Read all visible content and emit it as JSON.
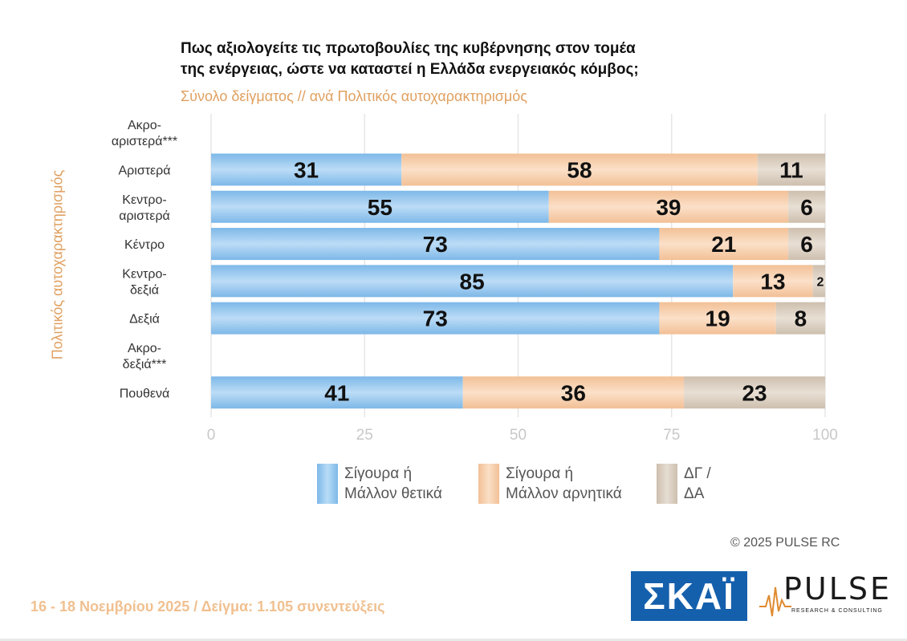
{
  "chart_data": {
    "type": "bar",
    "orientation": "horizontal",
    "stacked": true,
    "title_lines": [
      "Πως αξιολογείτε τις πρωτοβουλίες της κυβέρνησης στον τομέα",
      "της ενέργειας, ώστε να καταστεί η Ελλάδα ενεργειακός κόμβος;"
    ],
    "subtitle": "Σύνολο δείγματος // ανά Πολιτικός αυτοχαρακτηρισμός",
    "ylabel": "Πολιτικός αυτοχαρακτηρισμός",
    "xlabel": "",
    "xlim": [
      0,
      100
    ],
    "x_ticks": [
      "0",
      "25",
      "50",
      "75",
      "100"
    ],
    "categories": [
      [
        "Ακρο-",
        "αριστερά***"
      ],
      [
        "Αριστερά"
      ],
      [
        "Κεντρο-",
        "αριστερά"
      ],
      [
        "Κέντρο"
      ],
      [
        "Κεντρο-",
        "δεξιά"
      ],
      [
        "Δεξιά"
      ],
      [
        "Ακρο-",
        "δεξιά***"
      ],
      [
        "Πουθενά"
      ]
    ],
    "series": [
      {
        "name_lines": [
          "Σίγουρα ή",
          "Μάλλον θετικά"
        ],
        "color": "#7db8e8",
        "values": [
          null,
          31,
          55,
          73,
          85,
          73,
          null,
          41
        ]
      },
      {
        "name_lines": [
          "Σίγουρα ή",
          "Μάλλον αρνητικά"
        ],
        "color": "#f2c096",
        "values": [
          null,
          58,
          39,
          21,
          13,
          19,
          null,
          36
        ]
      },
      {
        "name_lines": [
          "ΔΓ /",
          "ΔΑ"
        ],
        "color": "#cdbfae",
        "values": [
          null,
          11,
          6,
          6,
          2,
          8,
          null,
          23
        ]
      }
    ],
    "grid": true,
    "legend": "bottom"
  },
  "copyright": "©  2025  PULSE RC",
  "logos": {
    "skai": "ΣΚΑΪ",
    "pulse": "PULSE",
    "pulse_sub": "RESEARCH & CONSULTING"
  },
  "footer": "16 - 18 Νοεμβρίου 2025  /  Δείγμα:  1.105 συνεντεύξεις"
}
